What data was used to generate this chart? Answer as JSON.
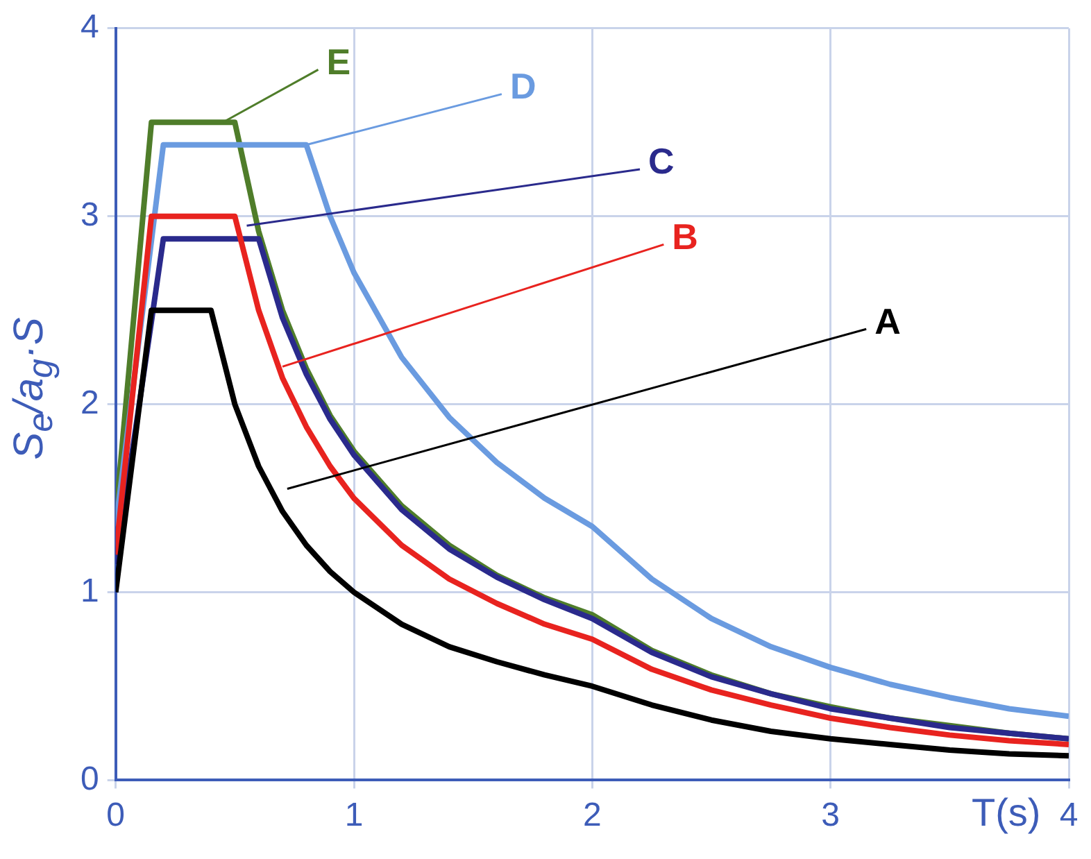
{
  "chart_data": {
    "type": "line",
    "xlabel": "T(s)",
    "ylabel": "S$_{e}$/a$_{g}$·S",
    "x": [
      0,
      0.15,
      0.2,
      0.4,
      0.5,
      0.6,
      0.7,
      0.8,
      0.9,
      1,
      1.2,
      1.4,
      1.6,
      1.8,
      2,
      2.25,
      2.5,
      2.75,
      3,
      3.25,
      3.5,
      3.75,
      4
    ],
    "series": [
      {
        "name": "A",
        "color": "#000000",
        "values": [
          1.0,
          2.5,
          2.5,
          2.5,
          2.0,
          1.67,
          1.43,
          1.25,
          1.11,
          1.0,
          0.83,
          0.71,
          0.63,
          0.56,
          0.5,
          0.4,
          0.32,
          0.26,
          0.22,
          0.19,
          0.16,
          0.14,
          0.13
        ]
      },
      {
        "name": "B",
        "color": "#e8231f",
        "values": [
          1.2,
          3.0,
          3.0,
          3.0,
          3.0,
          2.5,
          2.14,
          1.88,
          1.67,
          1.5,
          1.25,
          1.07,
          0.94,
          0.83,
          0.75,
          0.59,
          0.48,
          0.4,
          0.33,
          0.28,
          0.24,
          0.21,
          0.19
        ]
      },
      {
        "name": "C",
        "color": "#2a2a8c",
        "values": [
          1.15,
          2.44,
          2.88,
          2.88,
          2.88,
          2.88,
          2.46,
          2.16,
          1.92,
          1.73,
          1.44,
          1.23,
          1.08,
          0.96,
          0.86,
          0.68,
          0.55,
          0.46,
          0.38,
          0.33,
          0.28,
          0.25,
          0.22
        ]
      },
      {
        "name": "D",
        "color": "#6a9be0",
        "values": [
          1.35,
          2.87,
          3.38,
          3.38,
          3.38,
          3.38,
          3.38,
          3.38,
          3.0,
          2.7,
          2.25,
          1.93,
          1.69,
          1.5,
          1.35,
          1.07,
          0.86,
          0.71,
          0.6,
          0.51,
          0.44,
          0.38,
          0.34
        ]
      },
      {
        "name": "E",
        "color": "#4f7d2a",
        "values": [
          1.4,
          3.5,
          3.5,
          3.5,
          3.5,
          2.92,
          2.5,
          2.19,
          1.94,
          1.75,
          1.46,
          1.25,
          1.09,
          0.97,
          0.88,
          0.69,
          0.56,
          0.46,
          0.39,
          0.33,
          0.29,
          0.25,
          0.22
        ]
      }
    ],
    "xlim": [
      0,
      4
    ],
    "ylim": [
      0,
      4
    ],
    "xticks": [
      0,
      1,
      2,
      3,
      4
    ],
    "yticks": [
      0,
      1,
      2,
      3,
      4
    ],
    "grid": true,
    "legend": false,
    "marker": "none",
    "line_style": "solid"
  }
}
